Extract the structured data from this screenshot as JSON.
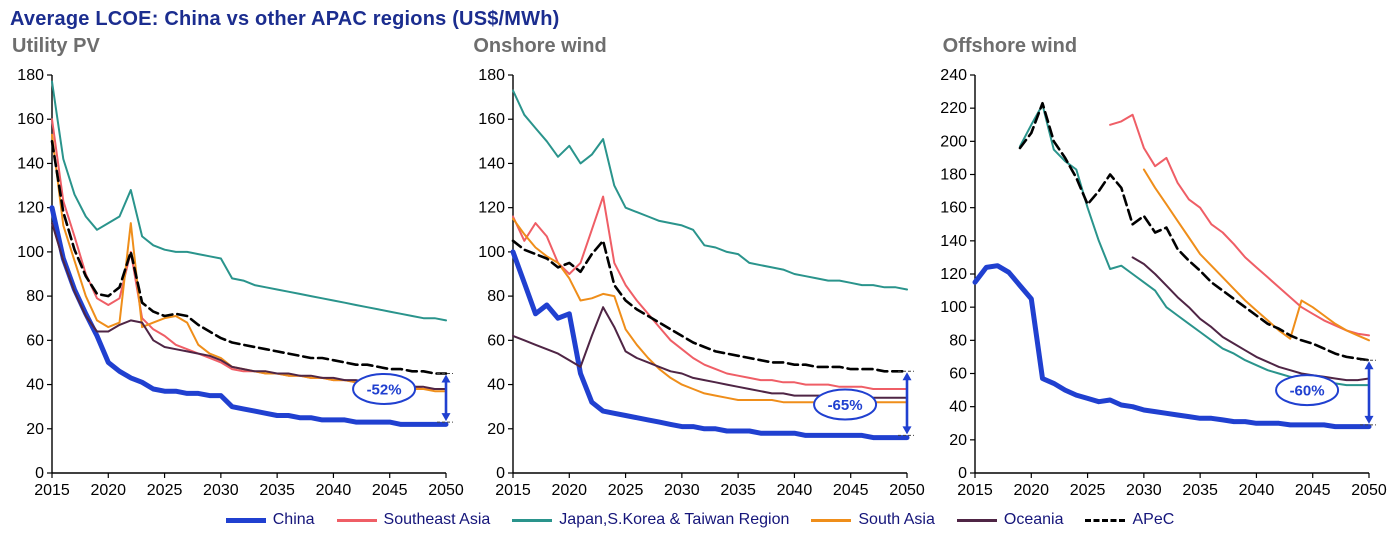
{
  "title": "Average LCOE: China vs other APAC regions (US$/MWh)",
  "colors": {
    "china": "#2040d0",
    "southeast_asia": "#ef5e66",
    "japan_skorea_taiwan": "#2a948c",
    "south_asia": "#ef8e1a",
    "oceania": "#4f2545",
    "apec": "#000000",
    "annotation": "#2040d0",
    "title": "#1b2d8f",
    "panel_title": "#6e6e6e"
  },
  "chart_data": [
    {
      "type": "line",
      "title": "Utility PV",
      "xlabel": "",
      "ylabel": "",
      "xlim": [
        2015,
        2050
      ],
      "ylim": [
        0,
        180
      ],
      "xticks": [
        2015,
        2020,
        2025,
        2030,
        2035,
        2040,
        2045,
        2050
      ],
      "yticks": [
        0,
        20,
        40,
        60,
        80,
        100,
        120,
        140,
        160,
        180
      ],
      "grid": false,
      "legend_position": "bottom-shared",
      "x": [
        2015,
        2016,
        2017,
        2018,
        2019,
        2020,
        2021,
        2022,
        2023,
        2024,
        2025,
        2026,
        2027,
        2028,
        2029,
        2030,
        2031,
        2032,
        2033,
        2034,
        2035,
        2036,
        2037,
        2038,
        2039,
        2040,
        2041,
        2042,
        2043,
        2044,
        2045,
        2046,
        2047,
        2048,
        2049,
        2050
      ],
      "series": [
        {
          "name": "China",
          "color": "#2040d0",
          "width": 5,
          "values": [
            120,
            97,
            83,
            72,
            62,
            50,
            46,
            43,
            41,
            38,
            37,
            37,
            36,
            36,
            35,
            35,
            30,
            29,
            28,
            27,
            26,
            26,
            25,
            25,
            24,
            24,
            24,
            23,
            23,
            23,
            23,
            22,
            22,
            22,
            22,
            22
          ]
        },
        {
          "name": "Southeast Asia",
          "color": "#ef5e66",
          "width": 2,
          "values": [
            160,
            123,
            107,
            90,
            79,
            76,
            79,
            100,
            70,
            65,
            62,
            58,
            56,
            54,
            52,
            50,
            47,
            46,
            46,
            45,
            45,
            44,
            44,
            43,
            43,
            42,
            42,
            41,
            41,
            40,
            40,
            39,
            39,
            38,
            38,
            38
          ]
        },
        {
          "name": "Japan,S.Korea & Taiwan Region",
          "color": "#2a948c",
          "width": 2,
          "values": [
            177,
            142,
            126,
            116,
            110,
            113,
            116,
            128,
            107,
            103,
            101,
            100,
            100,
            99,
            98,
            97,
            88,
            87,
            85,
            84,
            83,
            82,
            81,
            80,
            79,
            78,
            77,
            76,
            75,
            74,
            73,
            72,
            71,
            70,
            70,
            69
          ]
        },
        {
          "name": "South Asia",
          "color": "#ef8e1a",
          "width": 2,
          "values": [
            153,
            112,
            96,
            80,
            69,
            66,
            68,
            113,
            66,
            68,
            70,
            71,
            68,
            58,
            54,
            52,
            48,
            47,
            46,
            45,
            45,
            44,
            44,
            43,
            43,
            42,
            42,
            41,
            41,
            40,
            40,
            39,
            38,
            38,
            37,
            37
          ]
        },
        {
          "name": "Oceania",
          "color": "#4f2545",
          "width": 2,
          "values": [
            113,
            96,
            82,
            71,
            64,
            64,
            67,
            69,
            68,
            60,
            57,
            56,
            55,
            54,
            53,
            51,
            48,
            47,
            46,
            46,
            45,
            45,
            44,
            44,
            43,
            43,
            42,
            42,
            41,
            41,
            40,
            40,
            39,
            39,
            38,
            38
          ]
        },
        {
          "name": "APeC",
          "color": "#000000",
          "width": 2.6,
          "dash": "10 5",
          "values": [
            150,
            118,
            101,
            89,
            81,
            80,
            84,
            100,
            77,
            73,
            71,
            72,
            71,
            67,
            64,
            61,
            59,
            58,
            57,
            56,
            55,
            54,
            53,
            52,
            52,
            51,
            50,
            49,
            49,
            48,
            47,
            47,
            46,
            46,
            45,
            45
          ]
        }
      ],
      "annotation": {
        "label": "-52%",
        "arrow_x": 2050,
        "from": 45,
        "to": 23,
        "ellipse_x": 2044.5,
        "ellipse_y": 38
      }
    },
    {
      "type": "line",
      "title": "Onshore wind",
      "xlabel": "",
      "ylabel": "",
      "xlim": [
        2015,
        2050
      ],
      "ylim": [
        0,
        180
      ],
      "xticks": [
        2015,
        2020,
        2025,
        2030,
        2035,
        2040,
        2045,
        2050
      ],
      "yticks": [
        0,
        20,
        40,
        60,
        80,
        100,
        120,
        140,
        160,
        180
      ],
      "grid": false,
      "legend_position": "bottom-shared",
      "x": [
        2015,
        2016,
        2017,
        2018,
        2019,
        2020,
        2021,
        2022,
        2023,
        2024,
        2025,
        2026,
        2027,
        2028,
        2029,
        2030,
        2031,
        2032,
        2033,
        2034,
        2035,
        2036,
        2037,
        2038,
        2039,
        2040,
        2041,
        2042,
        2043,
        2044,
        2045,
        2046,
        2047,
        2048,
        2049,
        2050
      ],
      "series": [
        {
          "name": "China",
          "color": "#2040d0",
          "width": 5,
          "values": [
            100,
            86,
            72,
            76,
            70,
            72,
            45,
            32,
            28,
            27,
            26,
            25,
            24,
            23,
            22,
            21,
            21,
            20,
            20,
            19,
            19,
            19,
            18,
            18,
            18,
            18,
            17,
            17,
            17,
            17,
            17,
            17,
            16,
            16,
            16,
            16
          ]
        },
        {
          "name": "Southeast Asia",
          "color": "#ef5e66",
          "width": 2,
          "values": [
            116,
            105,
            113,
            107,
            95,
            90,
            95,
            110,
            125,
            95,
            85,
            78,
            72,
            66,
            60,
            56,
            52,
            49,
            47,
            45,
            44,
            43,
            42,
            42,
            41,
            41,
            40,
            40,
            40,
            39,
            39,
            39,
            38,
            38,
            38,
            38
          ]
        },
        {
          "name": "Japan,S.Korea & Taiwan Region",
          "color": "#2a948c",
          "width": 2,
          "values": [
            173,
            162,
            156,
            150,
            143,
            148,
            140,
            144,
            151,
            130,
            120,
            118,
            116,
            114,
            113,
            112,
            110,
            103,
            102,
            100,
            99,
            95,
            94,
            93,
            92,
            90,
            89,
            88,
            87,
            87,
            86,
            85,
            85,
            84,
            84,
            83
          ]
        },
        {
          "name": "South Asia",
          "color": "#ef8e1a",
          "width": 2,
          "values": [
            115,
            108,
            102,
            98,
            95,
            88,
            78,
            79,
            81,
            80,
            65,
            58,
            52,
            47,
            43,
            40,
            38,
            36,
            35,
            34,
            33,
            33,
            33,
            33,
            32,
            32,
            32,
            32,
            32,
            32,
            32,
            32,
            32,
            32,
            32,
            32
          ]
        },
        {
          "name": "Oceania",
          "color": "#4f2545",
          "width": 2,
          "values": [
            62,
            60,
            58,
            56,
            54,
            51,
            48,
            62,
            75,
            66,
            55,
            52,
            50,
            48,
            46,
            45,
            43,
            42,
            41,
            40,
            39,
            38,
            37,
            36,
            36,
            35,
            35,
            35,
            35,
            34,
            34,
            34,
            34,
            34,
            34,
            34
          ]
        },
        {
          "name": "APeC",
          "color": "#000000",
          "width": 2.6,
          "dash": "10 5",
          "values": [
            105,
            101,
            99,
            97,
            93,
            95,
            91,
            99,
            105,
            85,
            78,
            74,
            71,
            68,
            65,
            62,
            59,
            57,
            55,
            54,
            53,
            52,
            51,
            50,
            50,
            49,
            49,
            48,
            48,
            48,
            47,
            47,
            47,
            46,
            46,
            46
          ]
        }
      ],
      "annotation": {
        "label": "-65%",
        "arrow_x": 2050,
        "from": 46,
        "to": 17,
        "ellipse_x": 2044.5,
        "ellipse_y": 31
      }
    },
    {
      "type": "line",
      "title": "Offshore wind",
      "xlabel": "",
      "ylabel": "",
      "xlim": [
        2015,
        2050
      ],
      "ylim": [
        0,
        240
      ],
      "xticks": [
        2015,
        2020,
        2025,
        2030,
        2035,
        2040,
        2045,
        2050
      ],
      "yticks": [
        0,
        20,
        40,
        60,
        80,
        100,
        120,
        140,
        160,
        180,
        200,
        220,
        240
      ],
      "grid": false,
      "legend_position": "bottom-shared",
      "x": [
        2015,
        2016,
        2017,
        2018,
        2019,
        2020,
        2021,
        2022,
        2023,
        2024,
        2025,
        2026,
        2027,
        2028,
        2029,
        2030,
        2031,
        2032,
        2033,
        2034,
        2035,
        2036,
        2037,
        2038,
        2039,
        2040,
        2041,
        2042,
        2043,
        2044,
        2045,
        2046,
        2047,
        2048,
        2049,
        2050
      ],
      "series": [
        {
          "name": "China",
          "color": "#2040d0",
          "width": 5,
          "values": [
            115,
            124,
            125,
            121,
            113,
            105,
            57,
            54,
            50,
            47,
            45,
            43,
            44,
            41,
            40,
            38,
            37,
            36,
            35,
            34,
            33,
            33,
            32,
            31,
            31,
            30,
            30,
            30,
            29,
            29,
            29,
            29,
            28,
            28,
            28,
            28
          ]
        },
        {
          "name": "Southeast Asia",
          "color": "#ef5e66",
          "width": 2,
          "values": [
            null,
            null,
            null,
            null,
            null,
            null,
            null,
            null,
            null,
            null,
            null,
            null,
            210,
            212,
            216,
            196,
            185,
            190,
            175,
            165,
            160,
            150,
            145,
            138,
            130,
            124,
            118,
            112,
            106,
            100,
            96,
            92,
            89,
            86,
            84,
            83
          ]
        },
        {
          "name": "Japan,S.Korea & Taiwan Region",
          "color": "#2a948c",
          "width": 2,
          "values": [
            null,
            null,
            null,
            null,
            197,
            210,
            222,
            195,
            188,
            183,
            160,
            140,
            123,
            125,
            120,
            115,
            110,
            100,
            95,
            90,
            85,
            80,
            75,
            72,
            68,
            65,
            62,
            60,
            58,
            57,
            55,
            55,
            54,
            53,
            53,
            53
          ]
        },
        {
          "name": "South Asia",
          "color": "#ef8e1a",
          "width": 2,
          "values": [
            null,
            null,
            null,
            null,
            null,
            null,
            null,
            null,
            null,
            null,
            null,
            null,
            null,
            null,
            null,
            183,
            172,
            162,
            152,
            142,
            132,
            125,
            118,
            111,
            104,
            98,
            92,
            86,
            81,
            104,
            100,
            95,
            90,
            86,
            83,
            80
          ]
        },
        {
          "name": "Oceania",
          "color": "#4f2545",
          "width": 2,
          "values": [
            null,
            null,
            null,
            null,
            null,
            null,
            null,
            null,
            null,
            null,
            null,
            null,
            null,
            null,
            130,
            126,
            120,
            113,
            106,
            100,
            93,
            88,
            82,
            78,
            74,
            70,
            67,
            64,
            62,
            60,
            59,
            58,
            57,
            56,
            56,
            57
          ]
        },
        {
          "name": "APeC",
          "color": "#000000",
          "width": 2.6,
          "dash": "10 5",
          "values": [
            null,
            null,
            null,
            null,
            196,
            205,
            223,
            200,
            190,
            178,
            162,
            170,
            180,
            172,
            150,
            155,
            145,
            148,
            135,
            128,
            122,
            115,
            110,
            105,
            100,
            95,
            90,
            87,
            83,
            80,
            78,
            75,
            72,
            70,
            69,
            68
          ]
        }
      ],
      "annotation": {
        "label": "-60%",
        "arrow_x": 2050,
        "from": 68,
        "to": 29,
        "ellipse_x": 2044.5,
        "ellipse_y": 50
      }
    }
  ],
  "legend": {
    "items": [
      {
        "label": "China",
        "color": "#2040d0",
        "thick": true,
        "dash": false
      },
      {
        "label": "Southeast Asia",
        "color": "#ef5e66",
        "thick": false,
        "dash": false
      },
      {
        "label": "Japan,S.Korea & Taiwan Region",
        "color": "#2a948c",
        "thick": false,
        "dash": false
      },
      {
        "label": "South Asia",
        "color": "#ef8e1a",
        "thick": false,
        "dash": false
      },
      {
        "label": "Oceania",
        "color": "#4f2545",
        "thick": false,
        "dash": false
      },
      {
        "label": "APeC",
        "color": "#000000",
        "thick": false,
        "dash": true
      }
    ]
  }
}
